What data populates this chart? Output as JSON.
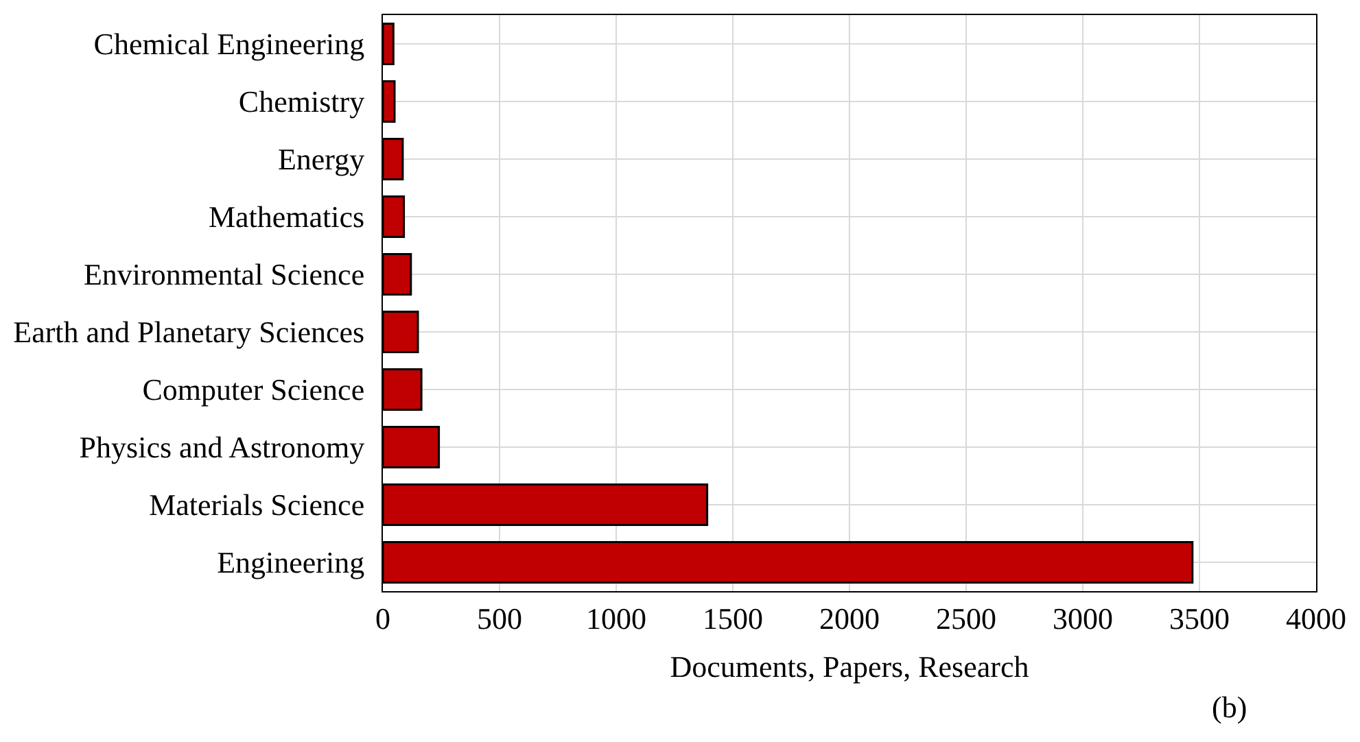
{
  "chart_data": {
    "type": "bar",
    "orientation": "horizontal",
    "xlabel": "Documents, Papers, Research",
    "annotations": [
      "(b)"
    ],
    "categories": [
      "Chemical Engineering",
      "Chemistry",
      "Energy",
      "Mathematics",
      "Environmental Science",
      "Earth and Planetary Sciences",
      "Computer Science",
      "Physics and Astronomy",
      "Materials Science",
      "Engineering"
    ],
    "values": [
      45,
      50,
      85,
      90,
      120,
      150,
      165,
      240,
      1390,
      3470
    ],
    "color": "#c00000",
    "xlim": [
      0,
      4000
    ],
    "xticks": [
      0,
      500,
      1000,
      1500,
      2000,
      2500,
      3000,
      3500,
      4000
    ],
    "grid": true,
    "legend": false
  }
}
